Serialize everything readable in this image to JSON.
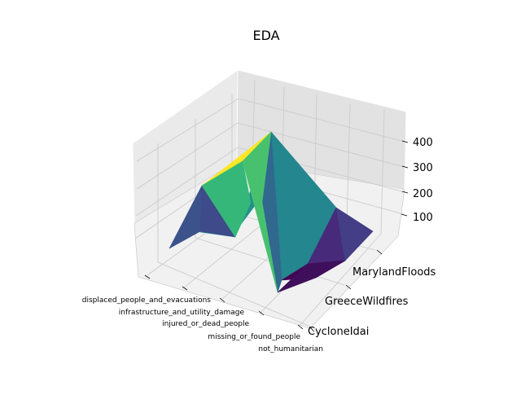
{
  "chart_data": {
    "type": "surface3d",
    "title": "EDA",
    "colormap": "viridis",
    "x_categories": [
      "displaced_people_and_evacuations",
      "infrastructure_and_utility_damage",
      "injured_or_dead_people",
      "missing_or_found_people",
      "not_humanitarian"
    ],
    "y_categories": [
      "CycloneIdai",
      "GreeceWildfires",
      "MarylandFloods"
    ],
    "z_ticks": [
      100,
      200,
      300,
      400
    ],
    "z_range": [
      20,
      480
    ],
    "grid": true
  }
}
